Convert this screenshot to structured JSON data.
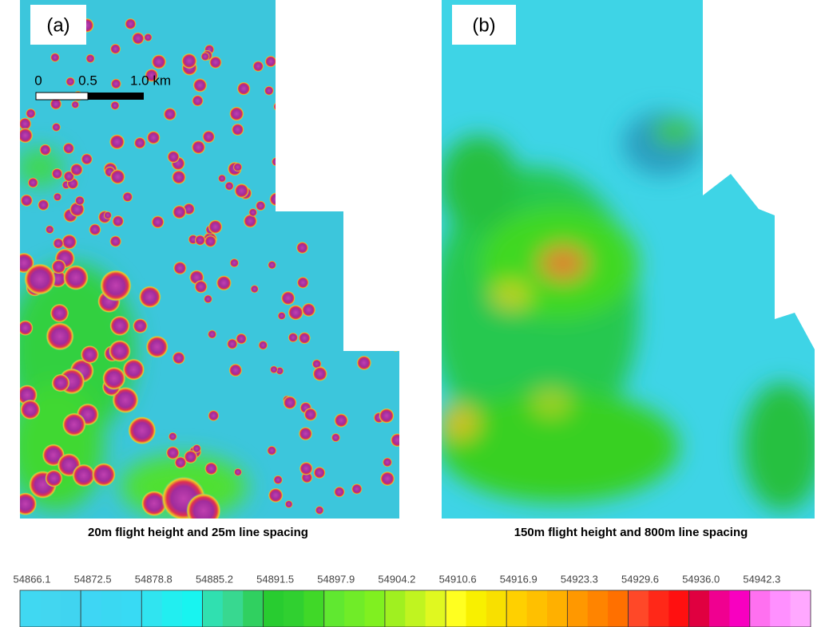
{
  "panels": [
    {
      "label": "(a)",
      "caption": "20m flight height and 25m line spacing",
      "scale_bar": [
        "0",
        "0.5",
        "1.0 km"
      ]
    },
    {
      "label": "(b)",
      "caption": "150m flight height and 800m line spacing"
    }
  ],
  "colorbar": {
    "labels": [
      "54866.1",
      "54872.5",
      "54878.8",
      "54885.2",
      "54891.5",
      "54897.9",
      "54904.2",
      "54910.6",
      "54916.9",
      "54923.3",
      "54929.6",
      "54936.0",
      "54942.3"
    ]
  }
}
